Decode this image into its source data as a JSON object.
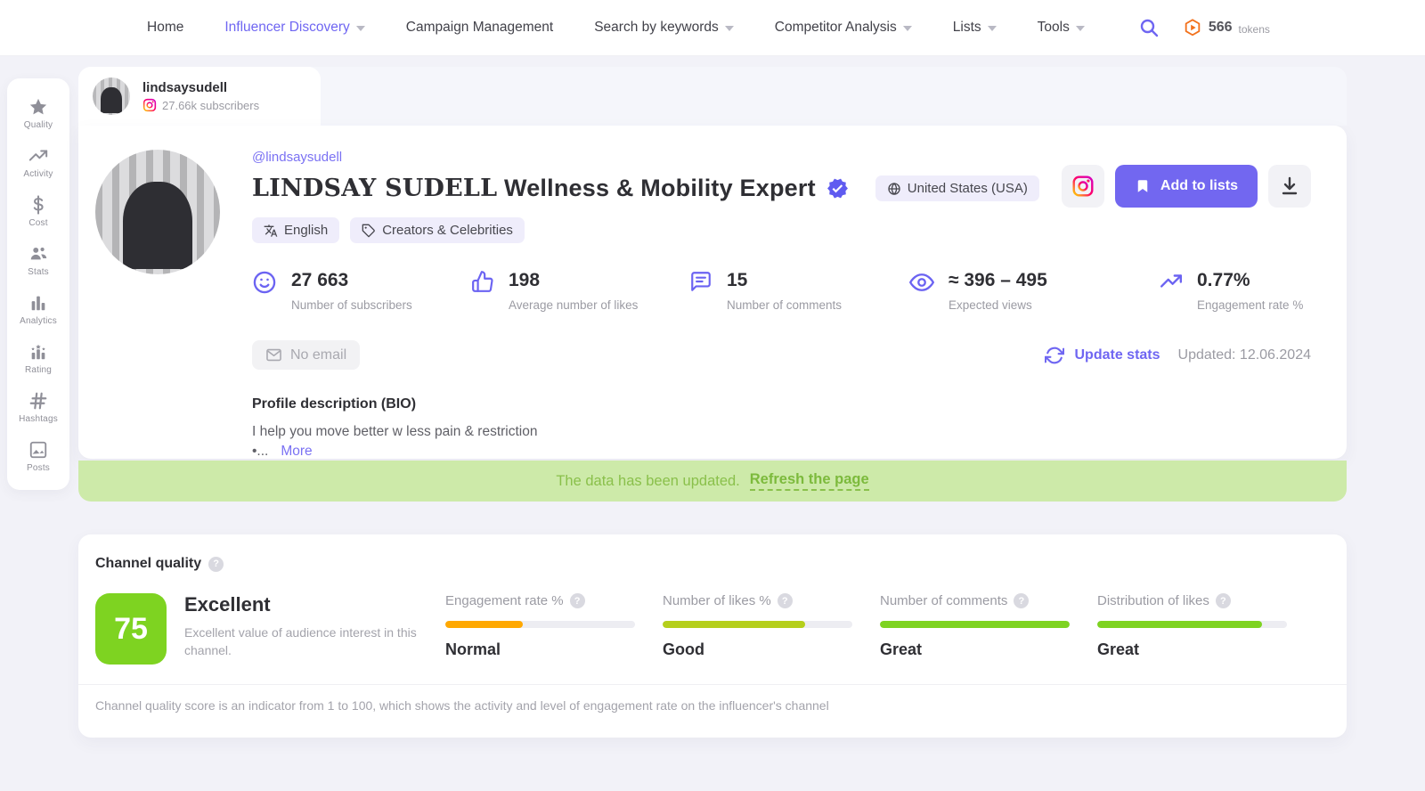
{
  "nav": {
    "items": [
      {
        "label": "Home",
        "caret": false,
        "active": false
      },
      {
        "label": "Influencer Discovery",
        "caret": true,
        "active": true
      },
      {
        "label": "Campaign Management",
        "caret": false,
        "active": false
      },
      {
        "label": "Search by keywords",
        "caret": true,
        "active": false
      },
      {
        "label": "Competitor Analysis",
        "caret": true,
        "active": false
      },
      {
        "label": "Lists",
        "caret": true,
        "active": false
      },
      {
        "label": "Tools",
        "caret": true,
        "active": false
      }
    ],
    "tokens": {
      "count": "566",
      "unit": "tokens"
    }
  },
  "sidebar": {
    "items": [
      {
        "label": "Quality"
      },
      {
        "label": "Activity"
      },
      {
        "label": "Cost"
      },
      {
        "label": "Stats"
      },
      {
        "label": "Analytics"
      },
      {
        "label": "Rating"
      },
      {
        "label": "Hashtags"
      },
      {
        "label": "Posts"
      }
    ]
  },
  "tab": {
    "username": "lindsaysudell",
    "subscribers": "27.66k subscribers"
  },
  "profile": {
    "handle": "@lindsaysudell",
    "name_serif": "LINDSAY SUDELL",
    "name_rest": " Wellness & Mobility Expert",
    "country": "United States (USA)",
    "add_to_lists_label": "Add to lists",
    "chips": [
      {
        "label": "English"
      },
      {
        "label": "Creators & Celebrities"
      }
    ],
    "stats": [
      {
        "value": "27 663",
        "label": "Number of subscribers"
      },
      {
        "value": "198",
        "label": "Average number of likes"
      },
      {
        "value": "15",
        "label": "Number of comments"
      },
      {
        "value": "≈ 396 – 495",
        "label": "Expected views"
      },
      {
        "value": "0.77%",
        "label": "Engagement rate %"
      }
    ],
    "no_email": "No email",
    "update_stats": "Update stats",
    "updated": "Updated: 12.06.2024",
    "bio_title": "Profile description (BIO)",
    "bio_line1": "I help you move better w less pain & restriction",
    "bio_line2": "•...",
    "more": "More"
  },
  "banner": {
    "text": "The data has been updated.",
    "link": "Refresh the page"
  },
  "quality": {
    "title": "Channel quality",
    "score": "75",
    "score_label": "Excellent",
    "score_desc": "Excellent value of audience interest in this channel.",
    "metrics": [
      {
        "label": "Engagement rate %",
        "status": "Normal",
        "percent": 41,
        "color": "#FFA800"
      },
      {
        "label": "Number of likes %",
        "status": "Good",
        "percent": 75,
        "color": "#B5CF1C"
      },
      {
        "label": "Number of comments",
        "status": "Great",
        "percent": 100,
        "color": "#7ED321"
      },
      {
        "label": "Distribution of likes",
        "status": "Great",
        "percent": 87,
        "color": "#7ED321"
      }
    ],
    "footer": "Channel quality score is an indicator from 1 to 100, which shows the activity and level of engagement rate on the influencer's channel"
  },
  "colors": {
    "accent": "#6F66F2",
    "score_green": "#7ED321",
    "banner_green": "#CDEAA9",
    "token_orange": "#F2711C"
  }
}
